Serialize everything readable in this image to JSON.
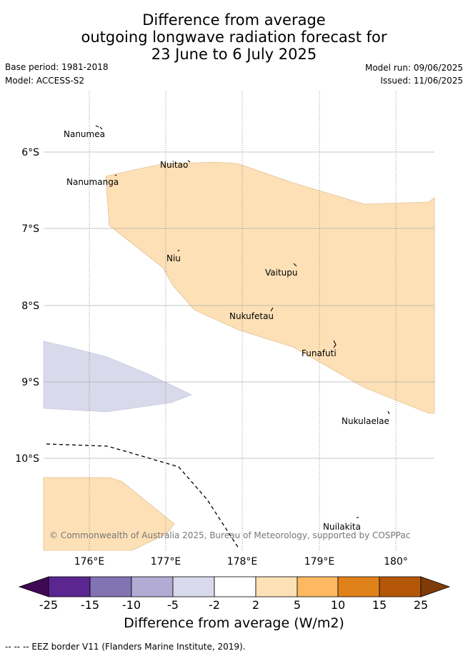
{
  "title": {
    "line1": "Difference from average",
    "line2": "outgoing longwave radiation forecast for",
    "line3": "23 June to 6 July 2025"
  },
  "meta": {
    "base_period": "Base period: 1981-2018",
    "model": "Model: ACCESS-S2",
    "model_run": "Model run: 09/06/2025",
    "issued": "Issued: 11/06/2025"
  },
  "map": {
    "lat_labels": [
      "6°S",
      "7°S",
      "8°S",
      "9°S",
      "10°S"
    ],
    "lon_labels": [
      "176°E",
      "177°E",
      "178°E",
      "179°E",
      "180°"
    ],
    "places": [
      "Nanumea",
      "Nuitao",
      "Nanumanga",
      "Niu",
      "Vaitupu",
      "Nukufetau",
      "Funafuti",
      "Nukulaelae",
      "Nuilakita"
    ],
    "copyright": "© Commonwealth of Australia 2025, Bureau of Meteorology, supported by COSPPac",
    "anomaly_colors": {
      "positive_2_5": "#fde0b6",
      "negative_2_5": "#d8d9ea"
    }
  },
  "colorbar": {
    "labels": [
      "-25",
      "-15",
      "-10",
      "-5",
      "-2",
      "2",
      "5",
      "10",
      "15",
      "25"
    ],
    "colors": [
      "#3f0a53",
      "#5b2690",
      "#8273b2",
      "#b2acd4",
      "#d8d9ea",
      "#ffffff",
      "#fde0b6",
      "#fdb861",
      "#e0821a",
      "#b35707",
      "#7f3b08"
    ],
    "title": "Difference from average (W/m2)"
  },
  "footnote": "-- -- -- EEZ border V11 (Flanders Marine Institute, 2019)."
}
